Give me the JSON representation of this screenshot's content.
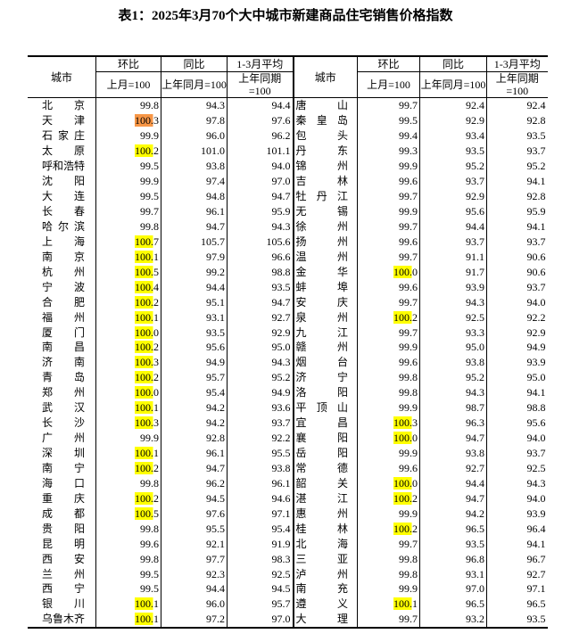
{
  "title": "表1：2025年3月70个大中城市新建商品住宅销售价格指数",
  "header": {
    "city": "城市",
    "mom": "环比",
    "yoy": "同比",
    "avg": "1-3月平均",
    "mom_base": "上月=100",
    "yoy_base": "上年同月=100",
    "avg_base": "上年同期=100"
  },
  "highlight_colors": {
    "y": "#ffff00",
    "o": "#f79646"
  },
  "left": [
    [
      "北　　京",
      "99.8",
      "94.3",
      "94.4",
      ""
    ],
    [
      "天　　津",
      "100.3",
      "97.8",
      "97.6",
      "o"
    ],
    [
      "石家庄",
      "99.9",
      "96.0",
      "96.2",
      ""
    ],
    [
      "太　　原",
      "100.2",
      "101.0",
      "101.1",
      "y"
    ],
    [
      "呼和浩特",
      "99.5",
      "93.8",
      "94.0",
      ""
    ],
    [
      "沈　　阳",
      "99.9",
      "97.4",
      "97.0",
      ""
    ],
    [
      "大　　连",
      "99.5",
      "94.8",
      "94.7",
      ""
    ],
    [
      "长　　春",
      "99.7",
      "96.1",
      "95.9",
      ""
    ],
    [
      "哈尔滨",
      "99.8",
      "94.7",
      "94.3",
      ""
    ],
    [
      "上　　海",
      "100.7",
      "105.7",
      "105.6",
      "y"
    ],
    [
      "南　　京",
      "100.1",
      "97.9",
      "96.6",
      "y"
    ],
    [
      "杭　　州",
      "100.5",
      "99.2",
      "98.8",
      "y"
    ],
    [
      "宁　　波",
      "100.4",
      "94.4",
      "93.5",
      "y"
    ],
    [
      "合　　肥",
      "100.2",
      "95.1",
      "94.7",
      "y"
    ],
    [
      "福　　州",
      "100.1",
      "93.1",
      "92.7",
      "y"
    ],
    [
      "厦　　门",
      "100.0",
      "93.5",
      "92.9",
      "y"
    ],
    [
      "南　　昌",
      "100.2",
      "95.6",
      "95.0",
      "y"
    ],
    [
      "济　　南",
      "100.3",
      "94.9",
      "94.3",
      "y"
    ],
    [
      "青　　岛",
      "100.2",
      "95.7",
      "95.2",
      "y"
    ],
    [
      "郑　　州",
      "100.0",
      "95.4",
      "94.9",
      "y"
    ],
    [
      "武　　汉",
      "100.1",
      "94.2",
      "93.6",
      "y"
    ],
    [
      "长　　沙",
      "100.3",
      "94.2",
      "93.7",
      "y"
    ],
    [
      "广　　州",
      "99.9",
      "92.8",
      "92.2",
      ""
    ],
    [
      "深　　圳",
      "100.1",
      "96.1",
      "95.5",
      "y"
    ],
    [
      "南　　宁",
      "100.2",
      "94.7",
      "93.8",
      "y"
    ],
    [
      "海　　口",
      "99.8",
      "96.2",
      "96.1",
      ""
    ],
    [
      "重　　庆",
      "100.2",
      "94.5",
      "94.6",
      "y"
    ],
    [
      "成　　都",
      "100.5",
      "97.6",
      "97.1",
      "y"
    ],
    [
      "贵　　阳",
      "99.8",
      "95.5",
      "95.4",
      ""
    ],
    [
      "昆　　明",
      "99.6",
      "92.1",
      "91.9",
      ""
    ],
    [
      "西　　安",
      "99.8",
      "97.7",
      "98.3",
      ""
    ],
    [
      "兰　　州",
      "99.5",
      "92.3",
      "92.5",
      ""
    ],
    [
      "西　　宁",
      "99.5",
      "94.4",
      "94.5",
      ""
    ],
    [
      "银　　川",
      "100.1",
      "96.0",
      "95.7",
      "y"
    ],
    [
      "乌鲁木齐",
      "100.1",
      "97.2",
      "97.0",
      "y"
    ]
  ],
  "right": [
    [
      "唐　　山",
      "99.7",
      "92.4",
      "92.4",
      ""
    ],
    [
      "秦皇岛",
      "99.5",
      "92.9",
      "92.8",
      ""
    ],
    [
      "包　　头",
      "99.4",
      "93.4",
      "93.5",
      ""
    ],
    [
      "丹　　东",
      "99.3",
      "93.5",
      "93.7",
      ""
    ],
    [
      "锦　　州",
      "99.9",
      "95.2",
      "95.2",
      ""
    ],
    [
      "吉　　林",
      "99.6",
      "93.7",
      "94.1",
      ""
    ],
    [
      "牡丹江",
      "99.7",
      "92.9",
      "92.8",
      ""
    ],
    [
      "无　　锡",
      "99.9",
      "95.6",
      "95.9",
      ""
    ],
    [
      "徐　　州",
      "99.7",
      "94.4",
      "94.1",
      ""
    ],
    [
      "扬　　州",
      "99.6",
      "93.7",
      "93.7",
      ""
    ],
    [
      "温　　州",
      "99.7",
      "91.1",
      "90.6",
      ""
    ],
    [
      "金　　华",
      "100.0",
      "91.7",
      "90.6",
      "y"
    ],
    [
      "蚌　　埠",
      "99.6",
      "93.9",
      "93.7",
      ""
    ],
    [
      "安　　庆",
      "99.7",
      "94.3",
      "94.0",
      ""
    ],
    [
      "泉　　州",
      "100.2",
      "92.5",
      "92.2",
      "y"
    ],
    [
      "九　　江",
      "99.7",
      "93.3",
      "92.9",
      ""
    ],
    [
      "赣　　州",
      "99.9",
      "95.0",
      "94.9",
      ""
    ],
    [
      "烟　　台",
      "99.6",
      "93.8",
      "93.9",
      ""
    ],
    [
      "济　　宁",
      "99.8",
      "95.2",
      "95.0",
      ""
    ],
    [
      "洛　　阳",
      "99.8",
      "94.3",
      "94.1",
      ""
    ],
    [
      "平顶山",
      "99.9",
      "98.7",
      "98.8",
      ""
    ],
    [
      "宜　　昌",
      "100.3",
      "96.3",
      "95.6",
      "y"
    ],
    [
      "襄　　阳",
      "100.0",
      "94.7",
      "94.0",
      "y"
    ],
    [
      "岳　　阳",
      "99.9",
      "93.8",
      "93.7",
      ""
    ],
    [
      "常　　德",
      "99.6",
      "92.7",
      "92.5",
      ""
    ],
    [
      "韶　　关",
      "100.0",
      "94.4",
      "94.3",
      "y"
    ],
    [
      "湛　　江",
      "100.2",
      "94.7",
      "94.0",
      "y"
    ],
    [
      "惠　　州",
      "99.9",
      "94.2",
      "93.9",
      ""
    ],
    [
      "桂　　林",
      "100.2",
      "96.5",
      "96.4",
      "y"
    ],
    [
      "北　　海",
      "99.7",
      "93.5",
      "94.1",
      ""
    ],
    [
      "三　　亚",
      "99.8",
      "96.8",
      "96.7",
      ""
    ],
    [
      "泸　　州",
      "99.8",
      "93.1",
      "92.7",
      ""
    ],
    [
      "南　　充",
      "99.9",
      "97.0",
      "97.1",
      ""
    ],
    [
      "遵　　义",
      "100.1",
      "96.5",
      "96.5",
      "y"
    ],
    [
      "大　　理",
      "99.7",
      "93.2",
      "93.5",
      ""
    ]
  ]
}
